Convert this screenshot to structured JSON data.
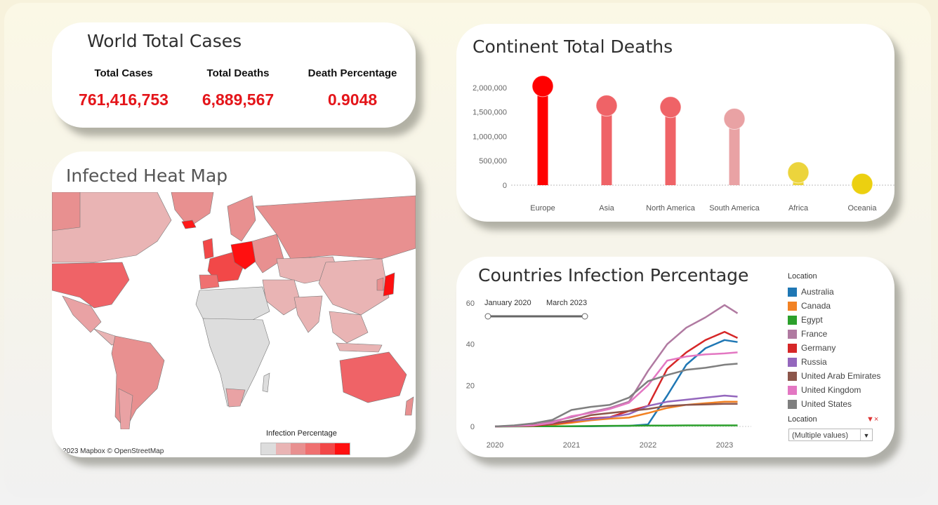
{
  "kpi": {
    "title": "World Total Cases",
    "metrics": [
      {
        "label": "Total Cases",
        "value": "761,416,753"
      },
      {
        "label": "Total Deaths",
        "value": "6,889,567"
      },
      {
        "label": "Death Percentage",
        "value": "0.9048"
      }
    ]
  },
  "map": {
    "title": "Infected Heat Map",
    "credit": "© 2023 Mapbox © OpenStreetMap",
    "legend_title": "Infection Percentage",
    "legend_colors": [
      "#dddddd",
      "#e9b4b4",
      "#e89090",
      "#ef7070",
      "#f24848",
      "#ff1010"
    ]
  },
  "continent_deaths": {
    "title": "Continent Total Deaths",
    "chart_data": {
      "type": "lollipop",
      "categories": [
        "Europe",
        "Asia",
        "North America",
        "South America",
        "Africa",
        "Oceania"
      ],
      "values": [
        2030000,
        1630000,
        1600000,
        1360000,
        260000,
        25000
      ],
      "colors": [
        "#ff0000",
        "#ef6367",
        "#ef6367",
        "#e9a2a4",
        "#ecd43c",
        "#ecd010"
      ],
      "ylim": [
        0,
        2100000
      ],
      "yticks": [
        0,
        500000,
        1000000,
        1500000,
        2000000
      ],
      "ytick_labels": [
        "0",
        "500,000",
        "1,000,000",
        "1,500,000",
        "2,000,000"
      ]
    }
  },
  "infection": {
    "title": "Countries Infection Percentage",
    "slider": {
      "start": "January 2020",
      "end": "March 2023"
    },
    "legend_title": "Location",
    "filter_title": "Location",
    "filter_value": "(Multiple values)",
    "chart_data": {
      "type": "line",
      "x": [
        2020.0,
        2020.25,
        2020.5,
        2020.75,
        2021.0,
        2021.25,
        2021.5,
        2021.75,
        2022.0,
        2022.25,
        2022.5,
        2022.75,
        2023.0,
        2023.17
      ],
      "xticks": [
        2020,
        2021,
        2022,
        2023
      ],
      "yticks": [
        0,
        20,
        40,
        60
      ],
      "ylim": [
        0,
        60
      ],
      "series": [
        {
          "name": "Australia",
          "color": "#1f77b4",
          "values": [
            0,
            0.1,
            0.1,
            0.1,
            0.1,
            0.1,
            0.2,
            0.3,
            1,
            15,
            30,
            38,
            42,
            41
          ]
        },
        {
          "name": "Canada",
          "color": "#f28224",
          "values": [
            0,
            0.1,
            0.4,
            0.8,
            1.8,
            3,
            3.8,
            4.3,
            6.5,
            9,
            10.5,
            11.3,
            12,
            12
          ]
        },
        {
          "name": "Egypt",
          "color": "#2ca02c",
          "values": [
            0,
            0.01,
            0.1,
            0.1,
            0.15,
            0.2,
            0.3,
            0.35,
            0.4,
            0.45,
            0.5,
            0.5,
            0.5,
            0.5
          ]
        },
        {
          "name": "France",
          "color": "#b07aa1",
          "values": [
            0,
            0.2,
            0.5,
            2.5,
            4.5,
            7,
            9,
            12,
            27,
            40,
            48,
            53,
            59,
            55
          ]
        },
        {
          "name": "Germany",
          "color": "#d62728",
          "values": [
            0,
            0.2,
            0.3,
            1.2,
            2.5,
            4,
            4.5,
            7.5,
            10,
            28,
            36,
            42,
            46,
            43
          ]
        },
        {
          "name": "Russia",
          "color": "#9467bd",
          "values": [
            0,
            0.3,
            0.8,
            1.5,
            2.8,
            3.5,
            4.5,
            6,
            10,
            12,
            13,
            14,
            15,
            14.5
          ]
        },
        {
          "name": "United Arab Emirates",
          "color": "#8c564b",
          "values": [
            0,
            0.2,
            0.8,
            1.5,
            3,
            5.5,
            6.5,
            7.5,
            8.5,
            10,
            10.5,
            10.7,
            11,
            11
          ]
        },
        {
          "name": "United Kingdom",
          "color": "#e377c2",
          "values": [
            0,
            0.2,
            0.5,
            1.8,
            5,
            6.5,
            8.5,
            11.5,
            20,
            32,
            34,
            35,
            35.5,
            36
          ]
        },
        {
          "name": "United States",
          "color": "#7f7f7f",
          "values": [
            0,
            0.5,
            1.5,
            3.2,
            8,
            9.5,
            10.5,
            14,
            22,
            25,
            27.5,
            28.5,
            30,
            30.5
          ]
        }
      ]
    }
  }
}
